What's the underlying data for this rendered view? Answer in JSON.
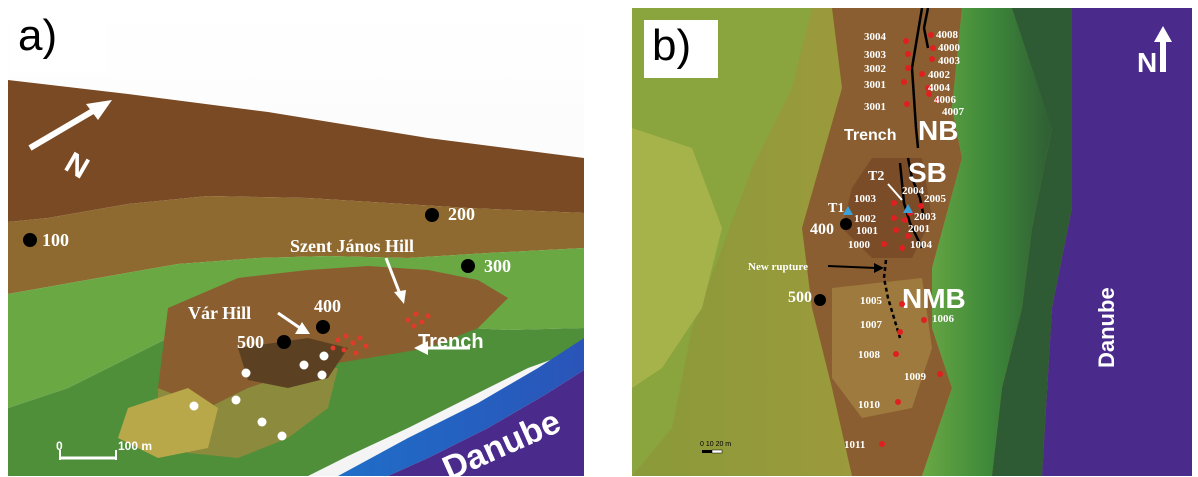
{
  "panel_a": {
    "label": "a)",
    "north_label": "N",
    "scale_label_start": "0",
    "scale_label_end": "100 m",
    "place_labels": {
      "hill_1": "Szent János Hill",
      "hill_2": "Vár Hill",
      "trench": "Trench",
      "river": "Danube"
    },
    "points": [
      {
        "label": "100"
      },
      {
        "label": "200"
      },
      {
        "label": "300"
      },
      {
        "label": "400"
      },
      {
        "label": "500"
      }
    ]
  },
  "panel_b": {
    "label": "b)",
    "north_label": "N",
    "scale_label": "0 10 20 m",
    "block_labels": {
      "nb": "NB",
      "sb": "SB",
      "nmb": "NMB"
    },
    "trench_label": "Trench",
    "new_rupture_label": "New rupture",
    "river_label": "Danube",
    "points_black": [
      {
        "label": "400"
      },
      {
        "label": "500"
      }
    ],
    "points_blue": [
      {
        "label": "T1"
      },
      {
        "label": "T2"
      }
    ],
    "points_red": [
      {
        "label": "3004"
      },
      {
        "label": "3003"
      },
      {
        "label": "3002"
      },
      {
        "label": "3001"
      },
      {
        "label": "3001"
      },
      {
        "label": "4008"
      },
      {
        "label": "4000"
      },
      {
        "label": "4003"
      },
      {
        "label": "4002"
      },
      {
        "label": "4004"
      },
      {
        "label": "4006"
      },
      {
        "label": "4007"
      },
      {
        "label": "2004"
      },
      {
        "label": "2005"
      },
      {
        "label": "1003"
      },
      {
        "label": "2003"
      },
      {
        "label": "1002"
      },
      {
        "label": "2001"
      },
      {
        "label": "1001"
      },
      {
        "label": "1000"
      },
      {
        "label": "1004"
      },
      {
        "label": "1005"
      },
      {
        "label": "1006"
      },
      {
        "label": "1007"
      },
      {
        "label": "1008"
      },
      {
        "label": "1009"
      },
      {
        "label": "1010"
      },
      {
        "label": "1011"
      }
    ]
  },
  "colors": {
    "ridge_brown": "#8a5a2e",
    "mid_olive": "#8a8a3a",
    "slope_green": "#4f9a3a",
    "river_blue": "#2c6fc0",
    "river_purple": "#4a2a8a",
    "red_point": "#e02020",
    "blue_point": "#3aa0d8"
  }
}
